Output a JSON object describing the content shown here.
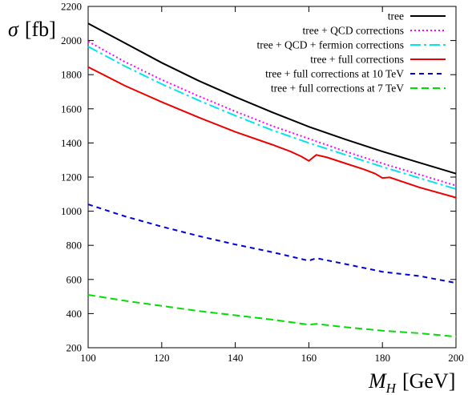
{
  "chart_data": {
    "type": "line",
    "xlabel": "M_H [GeV]",
    "ylabel": "σ [fb]",
    "xlim": [
      100,
      200
    ],
    "ylim": [
      200,
      2200
    ],
    "xticks": [
      100,
      120,
      140,
      160,
      180,
      200
    ],
    "yticks": [
      200,
      400,
      600,
      800,
      1000,
      1200,
      1400,
      1600,
      1800,
      2000,
      2200
    ],
    "grid": false,
    "legend_position": "top-right",
    "series": [
      {
        "name": "tree",
        "color": "#000000",
        "dash": "solid",
        "x": [
          100,
          110,
          120,
          130,
          140,
          150,
          160,
          170,
          180,
          190,
          200
        ],
        "y": [
          2100,
          1985,
          1870,
          1765,
          1670,
          1580,
          1495,
          1420,
          1350,
          1285,
          1220
        ]
      },
      {
        "name": "tree + QCD corrections",
        "color": "#ff00ff",
        "dash": "dotted",
        "x": [
          100,
          110,
          120,
          130,
          140,
          150,
          160,
          170,
          180,
          190,
          200
        ],
        "y": [
          1995,
          1875,
          1770,
          1675,
          1585,
          1500,
          1425,
          1350,
          1280,
          1215,
          1150
        ]
      },
      {
        "name": "tree + QCD + fermion corrections",
        "color": "#00e5ee",
        "dash": "dashdot",
        "x": [
          100,
          110,
          120,
          130,
          140,
          150,
          160,
          170,
          180,
          190,
          200
        ],
        "y": [
          1965,
          1850,
          1745,
          1650,
          1560,
          1475,
          1400,
          1330,
          1260,
          1195,
          1130
        ]
      },
      {
        "name": "tree + full corrections",
        "color": "#ee0000",
        "dash": "solid",
        "x": [
          100,
          110,
          120,
          130,
          140,
          150,
          155,
          158,
          160,
          162,
          165,
          170,
          175,
          178,
          180,
          182,
          190,
          200
        ],
        "y": [
          1845,
          1735,
          1640,
          1550,
          1465,
          1390,
          1350,
          1320,
          1295,
          1330,
          1315,
          1280,
          1245,
          1220,
          1195,
          1198,
          1140,
          1080
        ]
      },
      {
        "name": "tree + full corrections at 10 TeV",
        "color": "#0000dd",
        "dash": "dashed",
        "x": [
          100,
          110,
          120,
          130,
          140,
          150,
          160,
          162,
          170,
          180,
          190,
          200
        ],
        "y": [
          1040,
          970,
          910,
          855,
          805,
          760,
          710,
          725,
          690,
          645,
          620,
          580
        ]
      },
      {
        "name": "tree + full corrections at 7 TeV",
        "color": "#00dd00",
        "dash": "longdash",
        "x": [
          100,
          110,
          120,
          130,
          140,
          150,
          160,
          162,
          170,
          180,
          190,
          200
        ],
        "y": [
          510,
          475,
          445,
          415,
          390,
          365,
          335,
          340,
          320,
          300,
          285,
          265
        ]
      }
    ]
  }
}
